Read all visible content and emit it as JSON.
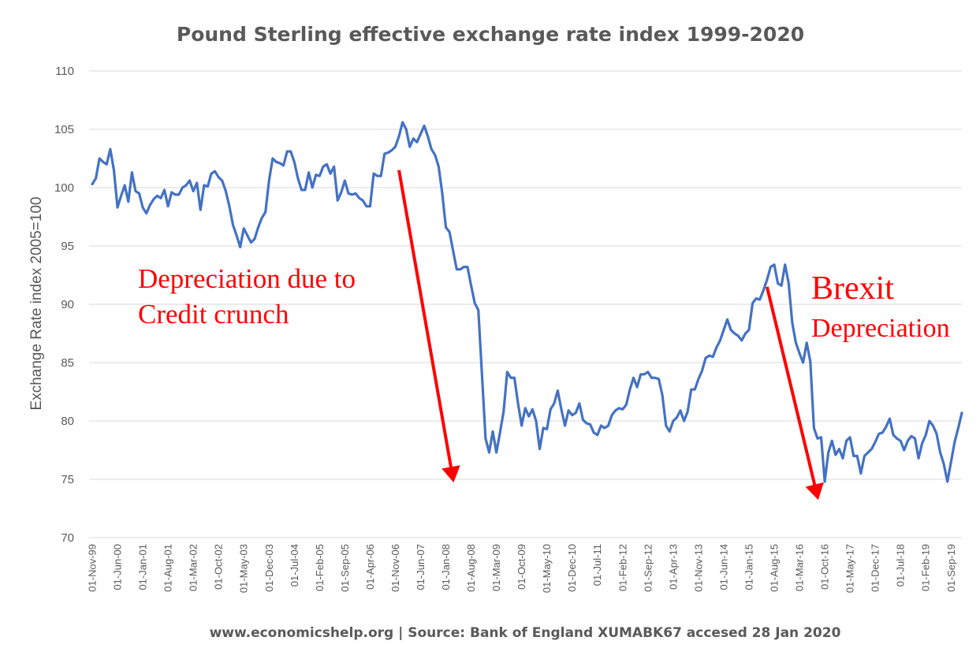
{
  "colors": {
    "line": "#4472c4",
    "grid": "#d9d9d9",
    "text": "#595959",
    "annotation": "#ff0000"
  },
  "chart_data": {
    "type": "line",
    "title": "Pound Sterling effective exchange rate index 1999-2020",
    "ylabel": "Exchange Rate index 2005=100",
    "xlabel": "",
    "footer": "www.economicshelp.org | Source: Bank of England XUMABK67 accesed 28 Jan 2020",
    "ylim": [
      70,
      110
    ],
    "yticks": [
      70,
      75,
      80,
      85,
      90,
      95,
      100,
      105,
      110
    ],
    "xticks": [
      "01-Nov-99",
      "01-Jun-00",
      "01-Jan-01",
      "01-Aug-01",
      "01-Mar-02",
      "01-Oct-02",
      "01-May-03",
      "01-Dec-03",
      "01-Jul-04",
      "01-Feb-05",
      "01-Sep-05",
      "01-Apr-06",
      "01-Nov-06",
      "01-Jun-07",
      "01-Jan-08",
      "01-Aug-08",
      "01-Mar-09",
      "01-Oct-09",
      "01-May-10",
      "01-Dec-10",
      "01-Jul-11",
      "01-Feb-12",
      "01-Sep-12",
      "01-Apr-13",
      "01-Nov-13",
      "01-Jun-14",
      "01-Jan-15",
      "01-Aug-15",
      "01-Mar-16",
      "01-Oct-16",
      "01-May-17",
      "01-Dec-17",
      "01-Jul-18",
      "01-Feb-19",
      "01-Sep-19"
    ],
    "grid": true,
    "legend": "none",
    "series": [
      {
        "start": "1999-11",
        "frequency": "monthly",
        "values": [
          100.3,
          100.8,
          102.5,
          102.2,
          102.0,
          103.3,
          101.5,
          98.3,
          99.3,
          100.2,
          98.8,
          101.3,
          99.7,
          99.5,
          98.3,
          97.8,
          98.5,
          99.0,
          99.3,
          99.1,
          99.8,
          98.4,
          99.6,
          99.4,
          99.4,
          100.0,
          100.2,
          100.6,
          99.7,
          100.4,
          98.1,
          100.2,
          100.1,
          101.2,
          101.4,
          100.9,
          100.6,
          99.7,
          98.4,
          96.8,
          95.9,
          94.9,
          96.5,
          95.9,
          95.3,
          95.6,
          96.6,
          97.4,
          97.9,
          100.6,
          102.5,
          102.2,
          102.1,
          101.9,
          103.1,
          103.1,
          102.2,
          100.8,
          99.8,
          99.8,
          101.3,
          100.0,
          101.1,
          101.0,
          101.8,
          102.0,
          101.2,
          101.8,
          98.9,
          99.6,
          100.6,
          99.5,
          99.4,
          99.5,
          99.1,
          98.9,
          98.4,
          98.4,
          101.2,
          101.0,
          101.0,
          102.9,
          103.0,
          103.2,
          103.5,
          104.4,
          105.6,
          105.0,
          103.5,
          104.2,
          103.9,
          104.6,
          105.3,
          104.4,
          103.3,
          102.8,
          101.8,
          99.5,
          96.6,
          96.2,
          94.6,
          93.0,
          93.0,
          93.2,
          93.2,
          91.6,
          90.1,
          89.5,
          84.0,
          78.5,
          77.3,
          79.1,
          77.3,
          79.0,
          80.8,
          84.2,
          83.7,
          83.7,
          81.5,
          79.6,
          81.1,
          80.4,
          81.0,
          80.0,
          77.6,
          79.4,
          79.3,
          81.0,
          81.5,
          82.6,
          81.0,
          79.6,
          80.9,
          80.5,
          80.7,
          81.5,
          80.1,
          79.8,
          79.7,
          79.0,
          78.8,
          79.6,
          79.4,
          79.6,
          80.5,
          80.9,
          81.1,
          81.0,
          81.4,
          82.7,
          83.7,
          82.9,
          84.0,
          84.0,
          84.2,
          83.7,
          83.7,
          83.6,
          82.2,
          79.6,
          79.1,
          80.0,
          80.3,
          80.9,
          80.0,
          80.8,
          82.7,
          82.7,
          83.6,
          84.3,
          85.4,
          85.6,
          85.5,
          86.3,
          86.9,
          87.8,
          88.7,
          87.8,
          87.5,
          87.3,
          86.9,
          87.5,
          87.8,
          90.1,
          90.5,
          90.4,
          91.2,
          92.1,
          93.2,
          93.4,
          91.8,
          91.6,
          93.4,
          91.8,
          88.4,
          86.7,
          85.8,
          85.0,
          86.7,
          85.1,
          79.4,
          78.5,
          78.6,
          74.8,
          77.3,
          78.3,
          77.1,
          77.6,
          76.8,
          78.3,
          78.6,
          77.0,
          77.0,
          75.5,
          77.0,
          77.3,
          77.6,
          78.2,
          78.9,
          79.0,
          79.5,
          80.2,
          78.8,
          78.5,
          78.3,
          77.5,
          78.3,
          78.7,
          78.5,
          76.8,
          78.1,
          78.8,
          80.0,
          79.6,
          78.9,
          77.3,
          76.3,
          74.8,
          76.5,
          78.2,
          79.4,
          80.7
        ]
      }
    ],
    "annotations": [
      {
        "lines": [
          "Depreciation due to",
          "Credit crunch"
        ]
      },
      {
        "lines": [
          "Brexit",
          "Depreciation"
        ]
      }
    ],
    "arrows": [
      {
        "from_date": "2006-12",
        "from_value": 101.5,
        "to_date": "2008-03",
        "to_value": 75.0
      },
      {
        "from_date": "2015-06",
        "from_value": 91.5,
        "to_date": "2016-08",
        "to_value": 73.5
      }
    ]
  }
}
